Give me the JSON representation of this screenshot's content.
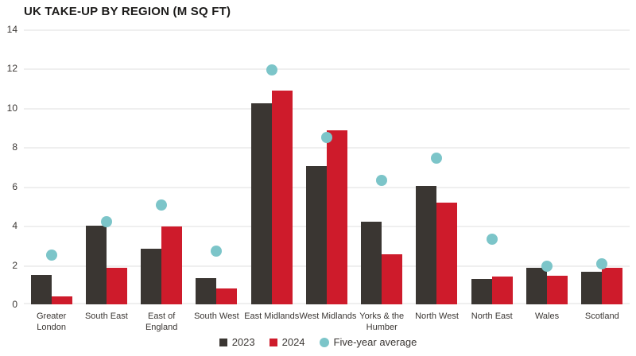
{
  "title": "UK TAKE-UP BY REGION (M SQ FT)",
  "colors": {
    "bar_2023": "#3a3632",
    "bar_2024": "#ce1b2b",
    "five_year_avg_dot": "#7cc5c9",
    "gridline": "#efefef",
    "axis_text": "#3a3633",
    "title_text": "#1c1b1a"
  },
  "chart_data": {
    "type": "bar",
    "title": "UK TAKE-UP BY REGION (M SQ FT)",
    "xlabel": "",
    "ylabel": "",
    "ylim": [
      0,
      14
    ],
    "yticks": [
      0,
      2,
      4,
      6,
      8,
      10,
      12,
      14
    ],
    "grid": true,
    "legend_position": "bottom",
    "categories": [
      "Greater\nLondon",
      "South East",
      "East of\nEngland",
      "South West",
      "East Midlands",
      "West Midlands",
      "Yorks & the\nHumber",
      "North West",
      "North East",
      "Wales",
      "Scotland"
    ],
    "series": [
      {
        "name": "2023",
        "color": "#3a3632",
        "values": [
          1.5,
          4.0,
          2.85,
          1.35,
          10.25,
          7.05,
          4.2,
          6.05,
          1.3,
          1.85,
          1.65
        ]
      },
      {
        "name": "2024",
        "color": "#ce1b2b",
        "values": [
          0.4,
          1.85,
          3.95,
          0.8,
          10.9,
          8.85,
          2.55,
          5.2,
          1.4,
          1.45,
          1.85
        ]
      }
    ],
    "dot_series": {
      "name": "Five-year average",
      "color": "#7cc5c9",
      "values": [
        2.5,
        4.2,
        5.05,
        2.7,
        11.95,
        8.5,
        6.3,
        7.45,
        3.3,
        1.95,
        2.05
      ]
    }
  }
}
